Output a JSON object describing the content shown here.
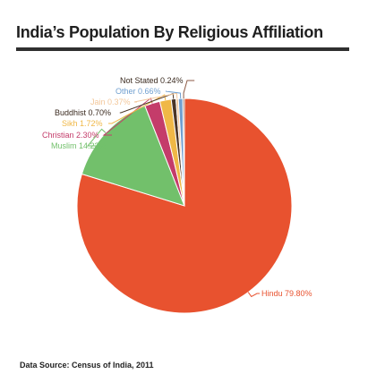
{
  "title": "India’s Population By Religious Affiliation",
  "source": "Data Source: Census of India, 2011",
  "chart_data": {
    "type": "pie",
    "title": "India’s Population By Religious Affiliation",
    "unit": "%",
    "slices": [
      {
        "name": "Hindu",
        "value": 79.8,
        "label": "Hindu 79.80%",
        "color": "#e8522f"
      },
      {
        "name": "Muslim",
        "value": 14.23,
        "label": "Muslim 14.23%",
        "color": "#72c06b"
      },
      {
        "name": "Christian",
        "value": 2.3,
        "label": "Christian 2.30%",
        "color": "#c43c6a"
      },
      {
        "name": "Sikh",
        "value": 1.72,
        "label": "Sikh 1.72%",
        "color": "#f0b847"
      },
      {
        "name": "Buddhist",
        "value": 0.7,
        "label": "Buddhist 0.70%",
        "color": "#4a3526"
      },
      {
        "name": "Jain",
        "value": 0.37,
        "label": "Jain 0.37%",
        "color": "#f3c79a"
      },
      {
        "name": "Other",
        "value": 0.66,
        "label": "Other 0.66%",
        "color": "#6f9fd0"
      },
      {
        "name": "Not Stated",
        "value": 0.24,
        "label": "Not Stated 0.24%",
        "color": "#8d5a45"
      }
    ],
    "legend": "none",
    "labels": "outside with leader lines"
  }
}
